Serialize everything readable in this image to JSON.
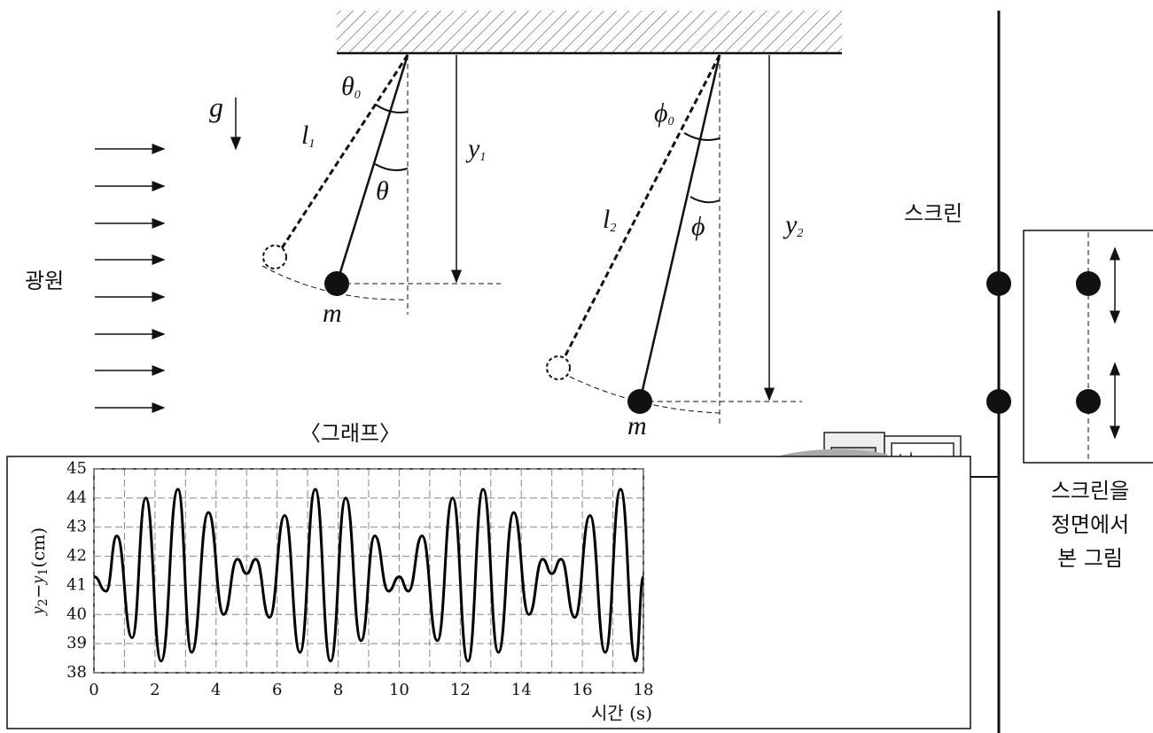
{
  "diagram": {
    "light_source": "광원",
    "gravity": "g",
    "pendulum_1": {
      "length": {
        "symbol": "l",
        "sub": "1"
      },
      "initial_angle": {
        "symbol": "θ",
        "sub": "0"
      },
      "angle": "θ",
      "height": {
        "symbol": "y",
        "sub": "1"
      },
      "mass": "m"
    },
    "pendulum_2": {
      "length": {
        "symbol": "l",
        "sub": "2"
      },
      "initial_angle": {
        "symbol": "ϕ",
        "sub": "0"
      },
      "angle": "ϕ",
      "height": {
        "symbol": "y",
        "sub": "2"
      },
      "mass": "m"
    },
    "screen": "스크린",
    "front_view_caption": [
      "스크린을",
      "정면에서",
      "본 그림"
    ]
  },
  "chart_data": {
    "type": "line",
    "title": "〈그래프〉",
    "y_label": {
      "a": "y",
      "a_sub": "2",
      "minus": "−",
      "b": "y",
      "b_sub": "1",
      "unit": "(cm)"
    },
    "x_label": "시간 (s)",
    "x": [
      0,
      0.4,
      0.75,
      1.25,
      1.7,
      2.2,
      2.75,
      3.2,
      3.75,
      4.25,
      4.7,
      5.0,
      5.3,
      5.75,
      6.25,
      6.75,
      7.25,
      7.75,
      8.25,
      8.75,
      9.2,
      9.65,
      10.0,
      10.3,
      10.75,
      11.25,
      11.75,
      12.25,
      12.75,
      13.25,
      13.75,
      14.25,
      14.7,
      15.0,
      15.3,
      15.75,
      16.25,
      16.75,
      17.25,
      17.75,
      18
    ],
    "series": [
      {
        "color": "#000000",
        "values": [
          41.3,
          40.8,
          42.7,
          39.2,
          44.0,
          38.4,
          44.3,
          38.7,
          43.5,
          40.0,
          41.9,
          41.4,
          41.9,
          39.9,
          43.4,
          38.7,
          44.3,
          38.4,
          44.0,
          39.1,
          42.7,
          40.8,
          41.3,
          40.8,
          42.7,
          39.1,
          44.0,
          38.4,
          44.3,
          38.7,
          43.5,
          40.0,
          41.9,
          41.4,
          41.9,
          39.9,
          43.4,
          38.7,
          44.3,
          38.4,
          41.3
        ]
      }
    ],
    "xlim": [
      0,
      18
    ],
    "ylim": [
      38,
      45
    ],
    "xticks": [
      0,
      2,
      4,
      6,
      8,
      10,
      12,
      14,
      16,
      18
    ],
    "yticks": [
      38,
      39,
      40,
      41,
      42,
      43,
      44,
      45
    ],
    "grid": true
  }
}
